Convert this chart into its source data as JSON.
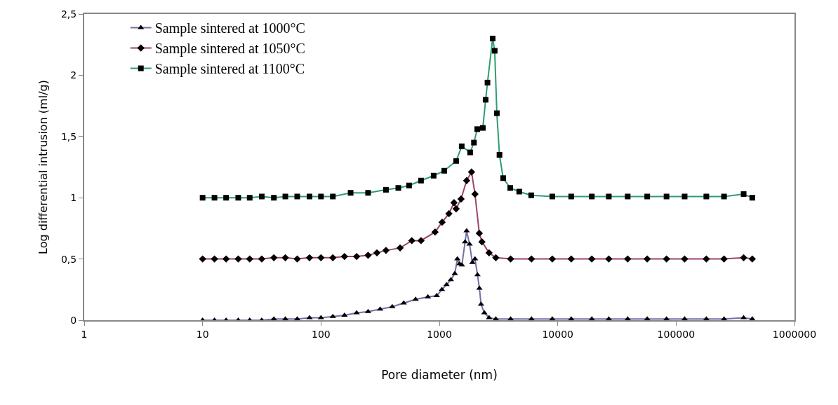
{
  "chart_data": {
    "type": "line",
    "xlabel": "Pore diameter (nm)",
    "ylabel": "Log differential intrusion (ml/g)",
    "log": "x",
    "xlim": [
      1,
      1000000
    ],
    "xticks": [
      1,
      10,
      100,
      1000,
      10000,
      100000,
      1000000
    ],
    "ylim": [
      0,
      2.5
    ],
    "yticks": [
      0,
      {
        "value": 0.5,
        "label": "0,5"
      },
      1,
      {
        "value": 1.5,
        "label": "1,5"
      },
      2,
      {
        "value": 2.5,
        "label": "2,5"
      }
    ],
    "legend": "top left",
    "series": [
      {
        "name": "Sample sintered at 1000°C",
        "color": "#7070a8",
        "marker": "triangle",
        "x": [
          10,
          12.6,
          15.8,
          20,
          25,
          31.6,
          40,
          50,
          63,
          80,
          100,
          126,
          158,
          200,
          250,
          316,
          400,
          500,
          630,
          800,
          950,
          1050,
          1150,
          1250,
          1350,
          1420,
          1480,
          1550,
          1650,
          1700,
          1800,
          1900,
          2000,
          2100,
          2180,
          2250,
          2400,
          2630,
          3000,
          4000,
          6000,
          9000,
          13000,
          19400,
          27000,
          39000,
          57000,
          83000,
          118000,
          180000,
          254000,
          372000,
          440000
        ],
        "values": [
          0,
          0,
          0,
          0,
          0,
          0,
          0.01,
          0.01,
          0.01,
          0.02,
          0.02,
          0.03,
          0.04,
          0.06,
          0.07,
          0.09,
          0.11,
          0.14,
          0.17,
          0.19,
          0.2,
          0.25,
          0.29,
          0.33,
          0.38,
          0.5,
          0.46,
          0.45,
          0.64,
          0.73,
          0.62,
          0.47,
          0.5,
          0.37,
          0.26,
          0.13,
          0.06,
          0.02,
          0.01,
          0.01,
          0.01,
          0.01,
          0.01,
          0.01,
          0.01,
          0.01,
          0.01,
          0.01,
          0.01,
          0.01,
          0.01,
          0.02,
          0.01
        ]
      },
      {
        "name": "Sample sintered at 1050°C",
        "color": "#a0406f",
        "marker": "diamond",
        "x": [
          10,
          12.6,
          15.8,
          20,
          25,
          31.6,
          40,
          50,
          63,
          80,
          100,
          126,
          158,
          200,
          250,
          297,
          354,
          466,
          585,
          700,
          920,
          1055,
          1205,
          1330,
          1386,
          1525,
          1700,
          1870,
          2000,
          2175,
          2290,
          2630,
          3000,
          4000,
          6000,
          9000,
          13000,
          19400,
          27000,
          39000,
          57000,
          83000,
          118000,
          180000,
          254000,
          372000,
          440000
        ],
        "values": [
          0.5,
          0.5,
          0.5,
          0.5,
          0.5,
          0.5,
          0.51,
          0.51,
          0.5,
          0.51,
          0.51,
          0.51,
          0.52,
          0.52,
          0.53,
          0.55,
          0.57,
          0.59,
          0.65,
          0.65,
          0.72,
          0.8,
          0.87,
          0.96,
          0.91,
          0.99,
          1.14,
          1.21,
          1.03,
          0.71,
          0.64,
          0.55,
          0.51,
          0.5,
          0.5,
          0.5,
          0.5,
          0.5,
          0.5,
          0.5,
          0.5,
          0.5,
          0.5,
          0.5,
          0.5,
          0.51,
          0.5
        ]
      },
      {
        "name": "Sample sintered at 1100°C",
        "color": "#2e9e6e",
        "marker": "square",
        "x": [
          10,
          12.6,
          15.8,
          20,
          25,
          31.6,
          40,
          50,
          63,
          80,
          100,
          126,
          178,
          250,
          354,
          450,
          555,
          700,
          895,
          1100,
          1386,
          1545,
          1820,
          1960,
          2090,
          2330,
          2460,
          2550,
          2820,
          2935,
          3060,
          3220,
          3460,
          3970,
          4730,
          5970,
          9000,
          13000,
          19400,
          27000,
          39000,
          57000,
          83000,
          118000,
          180000,
          254000,
          372000,
          440000
        ],
        "values": [
          1,
          1,
          1,
          1,
          1,
          1.01,
          1,
          1.01,
          1.01,
          1.01,
          1.01,
          1.01,
          1.04,
          1.04,
          1.065,
          1.08,
          1.1,
          1.14,
          1.18,
          1.22,
          1.3,
          1.42,
          1.37,
          1.45,
          1.56,
          1.57,
          1.8,
          1.94,
          2.3,
          2.2,
          1.69,
          1.35,
          1.16,
          1.08,
          1.05,
          1.02,
          1.01,
          1.01,
          1.01,
          1.01,
          1.01,
          1.01,
          1.01,
          1.01,
          1.01,
          1.01,
          1.03,
          1
        ]
      }
    ]
  }
}
